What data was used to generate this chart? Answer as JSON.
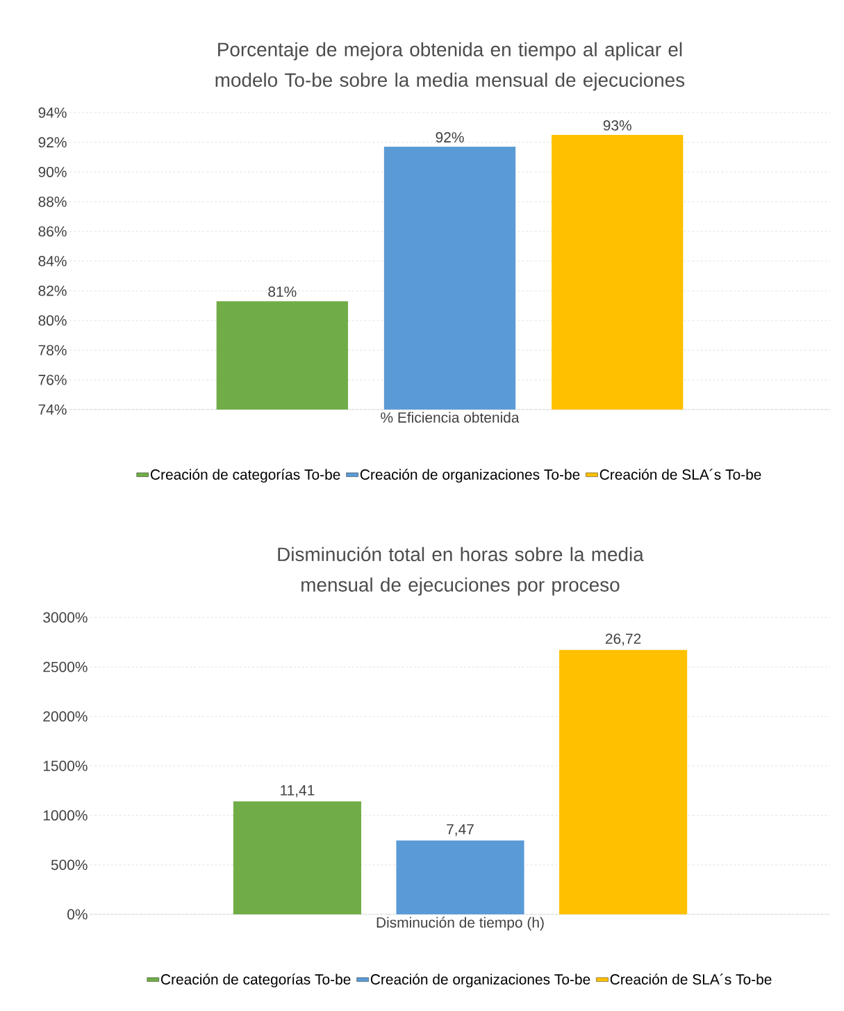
{
  "chart_data": [
    {
      "type": "bar",
      "title": "Porcentaje de mejora obtenida en tiempo al aplicar el modelo To-be sobre la media mensual de ejecuciones",
      "categories": [
        "% Eficiencia obtenida"
      ],
      "series": [
        {
          "name": "Creación de categorías To-be",
          "color": "#70ad47",
          "values": [
            81.3
          ],
          "value_labels": [
            "81%"
          ]
        },
        {
          "name": "Creación de organizaciones To-be",
          "color": "#5b9bd5",
          "values": [
            91.7
          ],
          "value_labels": [
            "92%"
          ]
        },
        {
          "name": "Creación de SLA´s To-be",
          "color": "#ffc000",
          "values": [
            92.5
          ],
          "value_labels": [
            "93%"
          ]
        }
      ],
      "ylim": [
        74,
        94
      ],
      "yticks": [
        {
          "value": 74,
          "label": "74%"
        },
        {
          "value": 76,
          "label": "76%"
        },
        {
          "value": 78,
          "label": "78%"
        },
        {
          "value": 80,
          "label": "80%"
        },
        {
          "value": 82,
          "label": "82%"
        },
        {
          "value": 84,
          "label": "84%"
        },
        {
          "value": 86,
          "label": "86%"
        },
        {
          "value": 88,
          "label": "88%"
        },
        {
          "value": 90,
          "label": "90%"
        },
        {
          "value": 92,
          "label": "92%"
        },
        {
          "value": 94,
          "label": "94%"
        }
      ],
      "grid": "y",
      "legend": "bottom"
    },
    {
      "type": "bar",
      "title": "Disminución total en horas sobre la media mensual de ejecuciones por proceso",
      "categories": [
        "Disminución de tiempo (h)"
      ],
      "series": [
        {
          "name": "Creación de categorías To-be",
          "color": "#70ad47",
          "values": [
            11.41
          ],
          "value_labels": [
            "11,41"
          ]
        },
        {
          "name": "Creación de organizaciones To-be",
          "color": "#5b9bd5",
          "values": [
            7.47
          ],
          "value_labels": [
            "7,47"
          ]
        },
        {
          "name": "Creación de SLA´s To-be",
          "color": "#ffc000",
          "values": [
            26.72
          ],
          "value_labels": [
            "26,72"
          ]
        }
      ],
      "ylim": [
        0,
        30
      ],
      "yticks": [
        {
          "value": 0,
          "label": "0%"
        },
        {
          "value": 5,
          "label": "500%"
        },
        {
          "value": 10,
          "label": "1000%"
        },
        {
          "value": 15,
          "label": "1500%"
        },
        {
          "value": 20,
          "label": "2000%"
        },
        {
          "value": 25,
          "label": "2500%"
        },
        {
          "value": 30,
          "label": "3000%"
        }
      ],
      "grid": "y",
      "legend": "bottom"
    }
  ]
}
